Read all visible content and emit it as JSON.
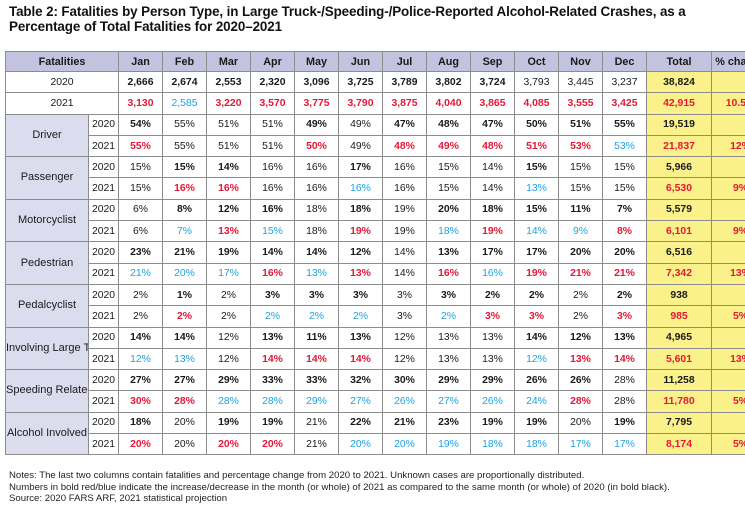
{
  "title": "Table 2: Fatalities by Person Type, in Large Truck-/Speeding-/Police-Reported Alcohol-Related Crashes, as a Percentage of Total Fatalities for 2020–2021",
  "header": {
    "fatalities": "Fatalities",
    "months": [
      "Jan",
      "Feb",
      "Mar",
      "Apr",
      "May",
      "Jun",
      "Jul",
      "Aug",
      "Sep",
      "Oct",
      "Nov",
      "Dec"
    ],
    "total": "Total",
    "pct_change": "% change"
  },
  "totals": [
    {
      "year": "2020",
      "cells": [
        "2,666",
        "2,674",
        "2,553",
        "2,320",
        "3,096",
        "3,725",
        "3,789",
        "3,802",
        "3,724",
        "3,793",
        "3,445",
        "3,237"
      ],
      "styles": [
        "b",
        "b",
        "b",
        "b",
        "b",
        "b",
        "b",
        "b",
        "b",
        "n",
        "n",
        "n"
      ],
      "total": "38,824",
      "total_style": "n",
      "pct": "",
      "pct_style": "n"
    },
    {
      "year": "2021",
      "cells": [
        "3,130",
        "2,585",
        "3,220",
        "3,570",
        "3,775",
        "3,790",
        "3,875",
        "4,040",
        "3,865",
        "4,085",
        "3,555",
        "3,425"
      ],
      "styles": [
        "r",
        "u",
        "r",
        "r",
        "r",
        "r",
        "r",
        "r",
        "r",
        "r",
        "r",
        "r"
      ],
      "total": "42,915",
      "total_style": "r",
      "pct": "10.5%",
      "pct_style": "r"
    }
  ],
  "groups": [
    {
      "label": "Driver",
      "rows": [
        {
          "year": "2020",
          "cells": [
            "54%",
            "55%",
            "51%",
            "51%",
            "49%",
            "49%",
            "47%",
            "48%",
            "47%",
            "50%",
            "51%",
            "55%"
          ],
          "styles": [
            "b",
            "n",
            "n",
            "n",
            "b",
            "n",
            "b",
            "b",
            "b",
            "b",
            "b",
            "b"
          ],
          "total": "19,519",
          "total_style": "n",
          "pct": "",
          "pct_style": "n"
        },
        {
          "year": "2021",
          "cells": [
            "55%",
            "55%",
            "51%",
            "51%",
            "50%",
            "49%",
            "48%",
            "49%",
            "48%",
            "51%",
            "53%",
            "53%"
          ],
          "styles": [
            "r",
            "n",
            "n",
            "n",
            "r",
            "n",
            "r",
            "r",
            "r",
            "r",
            "r",
            "u"
          ],
          "total": "21,837",
          "total_style": "r",
          "pct": "12%",
          "pct_style": "r"
        }
      ]
    },
    {
      "label": "Passenger",
      "rows": [
        {
          "year": "2020",
          "cells": [
            "15%",
            "15%",
            "14%",
            "16%",
            "16%",
            "17%",
            "16%",
            "15%",
            "14%",
            "15%",
            "15%",
            "15%"
          ],
          "styles": [
            "n",
            "b",
            "b",
            "n",
            "n",
            "b",
            "n",
            "n",
            "n",
            "b",
            "n",
            "n"
          ],
          "total": "5,966",
          "total_style": "n",
          "pct": "",
          "pct_style": "n"
        },
        {
          "year": "2021",
          "cells": [
            "15%",
            "16%",
            "16%",
            "16%",
            "16%",
            "16%",
            "16%",
            "15%",
            "14%",
            "13%",
            "15%",
            "15%"
          ],
          "styles": [
            "n",
            "r",
            "r",
            "n",
            "n",
            "u",
            "n",
            "n",
            "n",
            "u",
            "n",
            "n"
          ],
          "total": "6,530",
          "total_style": "r",
          "pct": "9%",
          "pct_style": "r"
        }
      ]
    },
    {
      "label": "Motorcyclist",
      "rows": [
        {
          "year": "2020",
          "cells": [
            "6%",
            "8%",
            "12%",
            "16%",
            "18%",
            "18%",
            "19%",
            "20%",
            "18%",
            "15%",
            "11%",
            "7%"
          ],
          "styles": [
            "n",
            "b",
            "b",
            "b",
            "n",
            "b",
            "n",
            "b",
            "b",
            "b",
            "b",
            "b"
          ],
          "total": "5,579",
          "total_style": "n",
          "pct": "",
          "pct_style": "n"
        },
        {
          "year": "2021",
          "cells": [
            "6%",
            "7%",
            "13%",
            "15%",
            "18%",
            "19%",
            "19%",
            "18%",
            "19%",
            "14%",
            "9%",
            "8%"
          ],
          "styles": [
            "n",
            "u",
            "r",
            "u",
            "n",
            "r",
            "n",
            "u",
            "r",
            "u",
            "u",
            "r"
          ],
          "total": "6,101",
          "total_style": "r",
          "pct": "9%",
          "pct_style": "r"
        }
      ]
    },
    {
      "label": "Pedestrian",
      "rows": [
        {
          "year": "2020",
          "cells": [
            "23%",
            "21%",
            "19%",
            "14%",
            "14%",
            "12%",
            "14%",
            "13%",
            "17%",
            "17%",
            "20%",
            "20%"
          ],
          "styles": [
            "b",
            "b",
            "b",
            "b",
            "b",
            "b",
            "n",
            "b",
            "b",
            "b",
            "b",
            "b"
          ],
          "total": "6,516",
          "total_style": "n",
          "pct": "",
          "pct_style": "n"
        },
        {
          "year": "2021",
          "cells": [
            "21%",
            "20%",
            "17%",
            "16%",
            "13%",
            "13%",
            "14%",
            "16%",
            "16%",
            "19%",
            "21%",
            "21%"
          ],
          "styles": [
            "u",
            "u",
            "u",
            "r",
            "u",
            "r",
            "n",
            "r",
            "u",
            "r",
            "r",
            "r"
          ],
          "total": "7,342",
          "total_style": "r",
          "pct": "13%",
          "pct_style": "r"
        }
      ]
    },
    {
      "label": "Pedalcyclist",
      "rows": [
        {
          "year": "2020",
          "cells": [
            "2%",
            "1%",
            "2%",
            "3%",
            "3%",
            "3%",
            "3%",
            "3%",
            "2%",
            "2%",
            "2%",
            "2%"
          ],
          "styles": [
            "n",
            "b",
            "n",
            "b",
            "b",
            "b",
            "n",
            "b",
            "b",
            "b",
            "n",
            "b"
          ],
          "total": "938",
          "total_style": "n",
          "pct": "",
          "pct_style": "n"
        },
        {
          "year": "2021",
          "cells": [
            "2%",
            "2%",
            "2%",
            "2%",
            "2%",
            "2%",
            "3%",
            "2%",
            "3%",
            "3%",
            "2%",
            "3%"
          ],
          "styles": [
            "n",
            "r",
            "n",
            "u",
            "u",
            "u",
            "n",
            "u",
            "r",
            "r",
            "n",
            "r"
          ],
          "total": "985",
          "total_style": "r",
          "pct": "5%",
          "pct_style": "r"
        }
      ]
    },
    {
      "label": "Involving Large Trucks",
      "rows": [
        {
          "year": "2020",
          "cells": [
            "14%",
            "14%",
            "12%",
            "13%",
            "11%",
            "13%",
            "12%",
            "13%",
            "13%",
            "14%",
            "12%",
            "13%"
          ],
          "styles": [
            "b",
            "b",
            "n",
            "b",
            "b",
            "b",
            "n",
            "n",
            "n",
            "b",
            "b",
            "b"
          ],
          "total": "4,965",
          "total_style": "n",
          "pct": "",
          "pct_style": "n"
        },
        {
          "year": "2021",
          "cells": [
            "12%",
            "13%",
            "12%",
            "14%",
            "14%",
            "14%",
            "12%",
            "13%",
            "13%",
            "12%",
            "13%",
            "14%"
          ],
          "styles": [
            "u",
            "u",
            "n",
            "r",
            "r",
            "r",
            "n",
            "n",
            "n",
            "u",
            "r",
            "r"
          ],
          "total": "5,601",
          "total_style": "r",
          "pct": "13%",
          "pct_style": "r"
        }
      ]
    },
    {
      "label": "Speeding Related",
      "rows": [
        {
          "year": "2020",
          "cells": [
            "27%",
            "27%",
            "29%",
            "33%",
            "33%",
            "32%",
            "30%",
            "29%",
            "29%",
            "26%",
            "26%",
            "28%"
          ],
          "styles": [
            "b",
            "b",
            "b",
            "b",
            "b",
            "b",
            "b",
            "b",
            "b",
            "b",
            "b",
            "n"
          ],
          "total": "11,258",
          "total_style": "n",
          "pct": "",
          "pct_style": "n"
        },
        {
          "year": "2021",
          "cells": [
            "30%",
            "28%",
            "28%",
            "28%",
            "29%",
            "27%",
            "26%",
            "27%",
            "26%",
            "24%",
            "28%",
            "28%"
          ],
          "styles": [
            "r",
            "r",
            "u",
            "u",
            "u",
            "u",
            "u",
            "u",
            "u",
            "u",
            "r",
            "n"
          ],
          "total": "11,780",
          "total_style": "r",
          "pct": "5%",
          "pct_style": "r"
        }
      ]
    },
    {
      "label": "Alcohol Involved",
      "rows": [
        {
          "year": "2020",
          "cells": [
            "18%",
            "20%",
            "19%",
            "19%",
            "21%",
            "22%",
            "21%",
            "23%",
            "19%",
            "19%",
            "20%",
            "19%"
          ],
          "styles": [
            "b",
            "n",
            "b",
            "b",
            "n",
            "b",
            "b",
            "b",
            "b",
            "b",
            "n",
            "b"
          ],
          "total": "7,795",
          "total_style": "n",
          "pct": "",
          "pct_style": "n"
        },
        {
          "year": "2021",
          "cells": [
            "20%",
            "20%",
            "20%",
            "20%",
            "21%",
            "20%",
            "20%",
            "19%",
            "18%",
            "18%",
            "17%",
            "17%"
          ],
          "styles": [
            "r",
            "n",
            "r",
            "r",
            "n",
            "u",
            "u",
            "u",
            "u",
            "u",
            "u",
            "u"
          ],
          "total": "8,174",
          "total_style": "r",
          "pct": "5%",
          "pct_style": "r"
        }
      ]
    }
  ],
  "notes": [
    "Notes: The last two columns contain fatalities and percentage change from 2020 to 2021. Unknown cases are proportionally distributed.",
    "Numbers in bold red/blue indicate the increase/decrease in the month (or whole) of 2021 as compared to the same month (or whole) of 2020 (in bold black).",
    "Source: 2020 FARS ARF, 2021 statistical projection"
  ],
  "colors": {
    "header_bg": "#c3c3e0",
    "category_bg": "#dcdcef",
    "total_bg": "#fbf18a",
    "increase": "#e31837",
    "decrease": "#1aa3e6"
  }
}
